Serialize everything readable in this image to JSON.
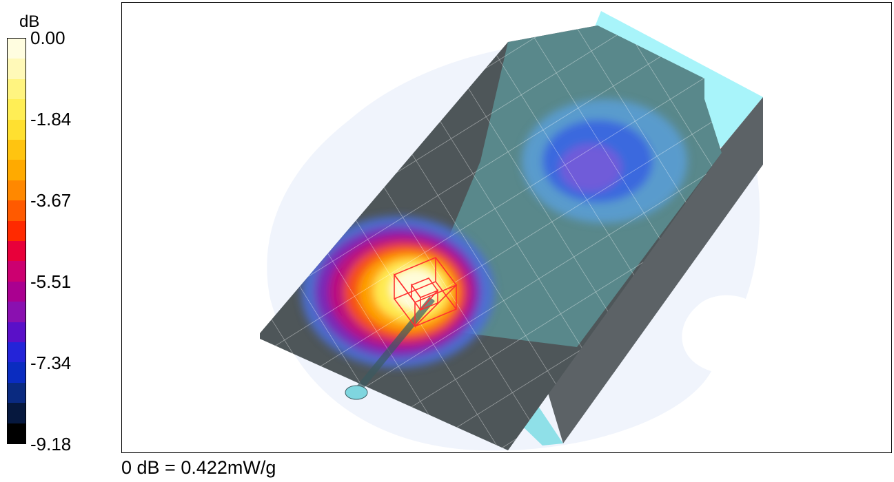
{
  "legend": {
    "unit": "dB",
    "ticks": [
      {
        "label": "0.00"
      },
      {
        "label": "-1.84"
      },
      {
        "label": "-3.67"
      },
      {
        "label": "-5.51"
      },
      {
        "label": "-7.34"
      },
      {
        "label": "-9.18"
      }
    ],
    "colors": [
      "#fffde0",
      "#fff9b8",
      "#fff480",
      "#ffee55",
      "#ffe030",
      "#ffc410",
      "#ffaa00",
      "#ff8800",
      "#ff5a00",
      "#ff2a00",
      "#e8003a",
      "#cc0070",
      "#aa0090",
      "#8a10b0",
      "#5a10c8",
      "#2424d8",
      "#0a2cc0",
      "#0a2a80",
      "#06183e",
      "#000000"
    ]
  },
  "reference": {
    "text": "0 dB = 0.422mW/g"
  }
}
